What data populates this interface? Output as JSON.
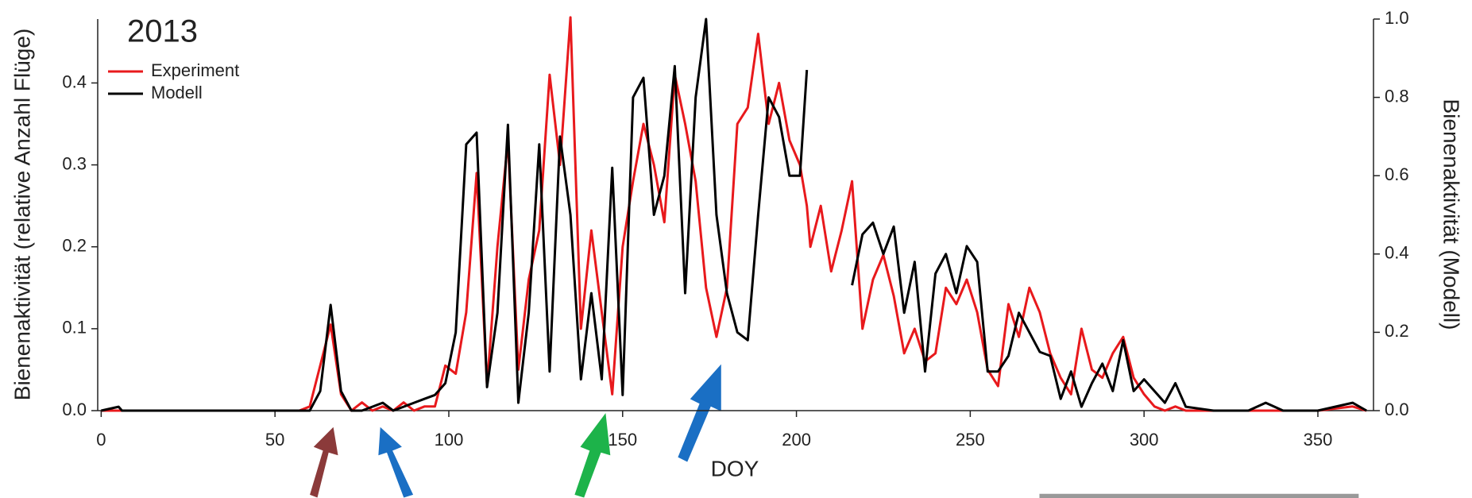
{
  "chart_data": {
    "type": "line",
    "title": "2013",
    "x_label": "DOY",
    "y_label": "Bienenaktivität (relative Anzahl Flüge)",
    "y2_label": "Bienenaktivität (Modell)",
    "x": [
      0,
      5,
      6,
      7,
      20,
      40,
      57,
      60,
      63,
      66,
      69,
      72,
      75,
      78,
      81,
      84,
      87,
      90,
      93,
      96,
      99,
      102,
      105,
      108,
      111,
      114,
      117,
      120,
      123,
      126,
      129,
      132,
      135,
      138,
      141,
      144,
      147,
      150,
      153,
      156,
      159,
      162,
      165,
      168,
      171,
      174,
      177,
      180,
      183,
      186,
      189,
      192,
      195,
      198,
      201,
      203,
      204,
      207,
      210,
      213,
      216,
      219,
      222,
      225,
      228,
      231,
      234,
      237,
      240,
      243,
      246,
      249,
      252,
      255,
      258,
      261,
      264,
      267,
      270,
      273,
      276,
      279,
      282,
      285,
      288,
      291,
      294,
      297,
      300,
      303,
      306,
      309,
      312,
      320,
      330,
      335,
      340,
      350,
      360,
      364
    ],
    "series": [
      {
        "name": "Experiment",
        "color": "#e8191c",
        "values": [
          0,
          0,
          0,
          0,
          0,
          0,
          0,
          0.005,
          0.055,
          0.105,
          0.02,
          0,
          0.01,
          0,
          0.005,
          0,
          0.01,
          0,
          0.005,
          0.005,
          0.055,
          0.045,
          0.12,
          0.29,
          0.03,
          0.2,
          0.33,
          0.05,
          0.16,
          0.22,
          0.41,
          0.3,
          0.48,
          0.1,
          0.22,
          0.12,
          0.02,
          0.2,
          0.28,
          0.35,
          0.3,
          0.23,
          0.41,
          0.35,
          0.28,
          0.15,
          0.09,
          0.15,
          0.35,
          0.37,
          0.46,
          0.35,
          0.4,
          0.33,
          0.3,
          0.25,
          0.2,
          0.25,
          0.17,
          0.22,
          0.28,
          0.1,
          0.16,
          0.19,
          0.14,
          0.07,
          0.1,
          0.06,
          0.07,
          0.15,
          0.13,
          0.16,
          0.12,
          0.05,
          0.03,
          0.13,
          0.09,
          0.15,
          0.12,
          0.07,
          0.04,
          0.02,
          0.1,
          0.05,
          0.04,
          0.07,
          0.09,
          0.04,
          0.02,
          0.005,
          0,
          0.005,
          0,
          0,
          0,
          0,
          0,
          0,
          0.005,
          0
        ]
      },
      {
        "name": "Modell",
        "color": "#000000",
        "axis": "y2",
        "values": [
          0,
          0.01,
          0,
          0,
          0,
          0,
          0,
          0,
          0.05,
          0.27,
          0.05,
          0,
          0,
          0.01,
          0.02,
          0,
          0.01,
          0.02,
          0.03,
          0.04,
          0.07,
          0.2,
          0.68,
          0.71,
          0.06,
          0.25,
          0.73,
          0.02,
          0.25,
          0.68,
          0.1,
          0.7,
          0.5,
          0.08,
          0.3,
          0.08,
          0.62,
          0.04,
          0.8,
          0.85,
          0.5,
          0.6,
          0.88,
          0.3,
          0.8,
          1.0,
          0.5,
          0.3,
          0.2,
          0.18,
          0.5,
          0.8,
          0.75,
          0.6,
          0.6,
          0.87,
          null,
          null,
          null,
          null,
          0.32,
          0.45,
          0.48,
          0.4,
          0.47,
          0.25,
          0.38,
          0.1,
          0.35,
          0.4,
          0.3,
          0.42,
          0.38,
          0.1,
          0.1,
          0.14,
          0.25,
          0.2,
          0.15,
          0.14,
          0.03,
          0.1,
          0.01,
          0.07,
          0.12,
          0.05,
          0.18,
          0.05,
          0.08,
          0.05,
          0.02,
          0.07,
          0.01,
          0,
          0,
          0.02,
          0,
          0,
          0.02,
          0
        ]
      }
    ],
    "xlim": [
      -1,
      366
    ],
    "xticks": [
      0,
      50,
      100,
      150,
      200,
      250,
      300,
      350
    ],
    "ylim": [
      0,
      0.478
    ],
    "yticks": [
      {
        "value": 0,
        "label": "0.0"
      },
      0.1,
      0.2,
      0.3,
      0.4
    ],
    "y2lim": [
      0,
      1
    ],
    "y2ticks": [
      {
        "value": 0,
        "label": "0.0"
      },
      0.2,
      0.4,
      0.6,
      0.8,
      {
        "value": 1,
        "label": "1.0"
      }
    ],
    "legend": "upper left"
  }
}
